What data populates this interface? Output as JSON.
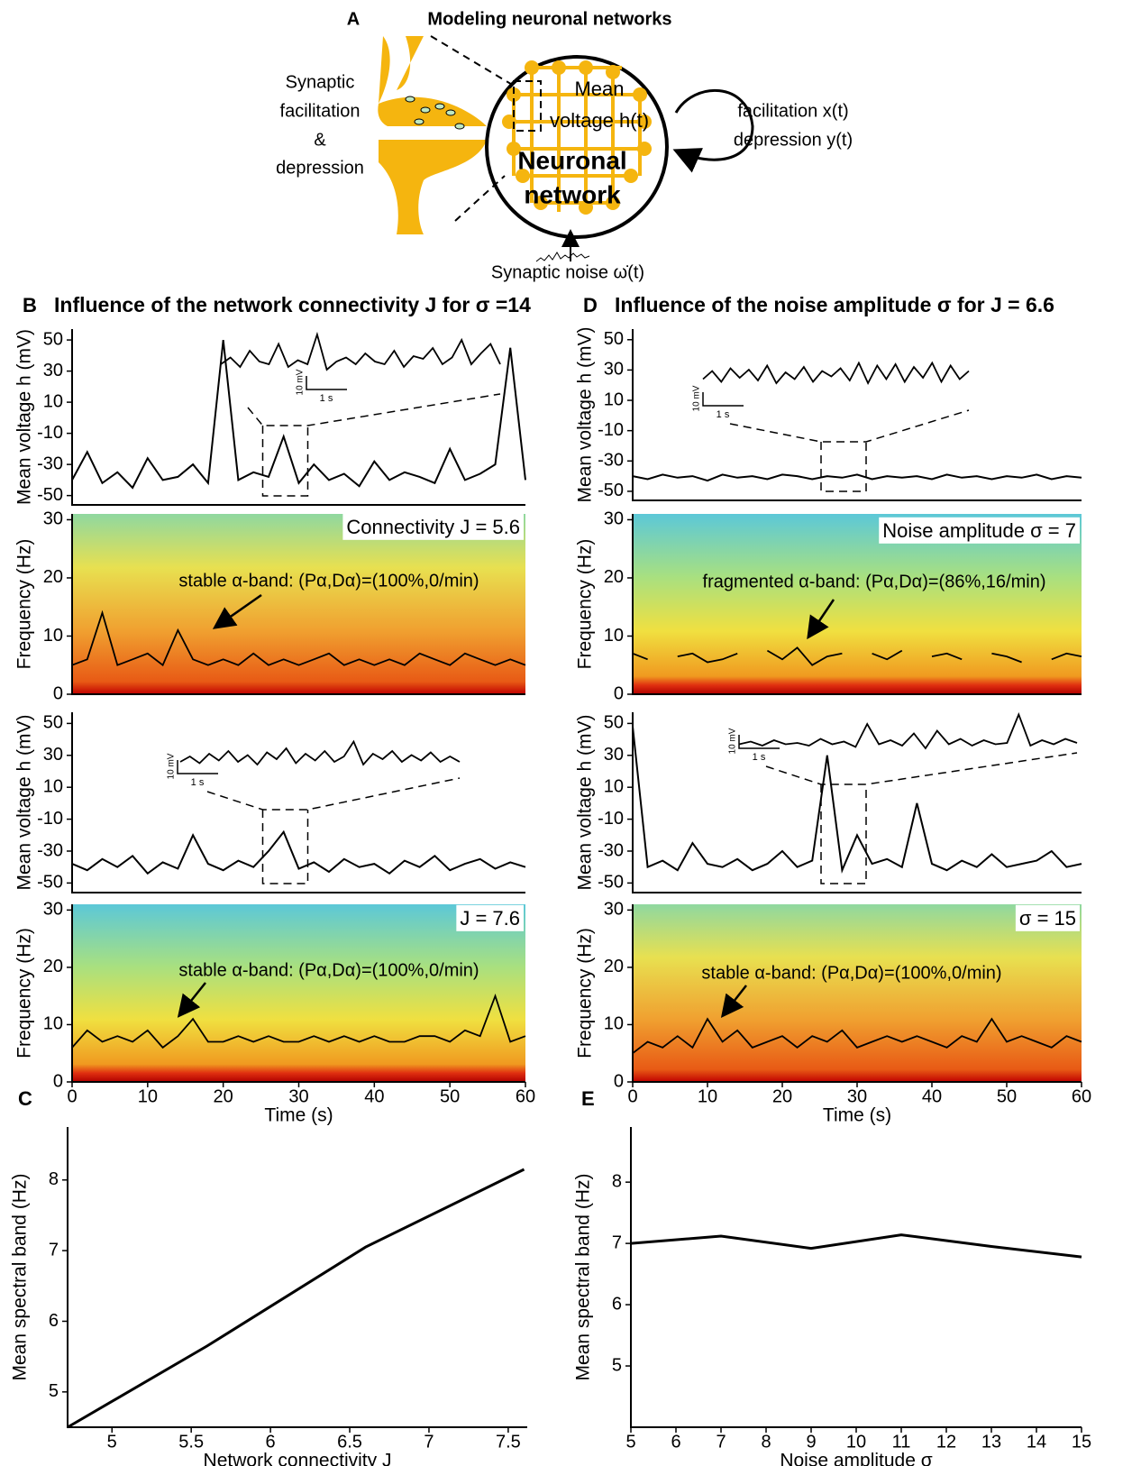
{
  "panel_a": {
    "label": "A",
    "title": "Modeling neuronal networks",
    "synapse_lines": [
      "Synaptic",
      "facilitation",
      "&",
      "depression"
    ],
    "mean_lines": [
      "Mean",
      "voltage h(t)"
    ],
    "network_lines": [
      "Neuronal",
      "network"
    ],
    "feedback_lines": [
      "facilitation x(t)",
      "depression y(t)"
    ],
    "noise": "Synaptic noise ω̇(t)"
  },
  "chart_data": [
    {
      "type": "voltage",
      "panel": "B",
      "title": "Influence of the network connectivity J for σ =14",
      "ylabel": "Mean voltage h (mV)",
      "color": "#000000",
      "xlim": [
        0,
        60
      ],
      "ylim": [
        -56,
        57
      ],
      "yticks": [
        50,
        30,
        10,
        -10,
        -30,
        -50
      ],
      "x": [
        0,
        2,
        4,
        6,
        8,
        10,
        12,
        14,
        16,
        18,
        20,
        22,
        24,
        26,
        28,
        30,
        32,
        34,
        36,
        38,
        40,
        42,
        44,
        46,
        48,
        50,
        52,
        54,
        56,
        58,
        60
      ],
      "values": [
        -40,
        -22,
        -42,
        -35,
        -45,
        -26,
        -40,
        -38,
        -30,
        -42,
        50,
        -40,
        -35,
        -38,
        -12,
        -42,
        -30,
        -40,
        -36,
        -44,
        -28,
        -40,
        -35,
        -38,
        -42,
        -20,
        -40,
        -36,
        -30,
        45,
        -40
      ],
      "inset": {
        "values": [
          30,
          35,
          28,
          40,
          32,
          30,
          45,
          28,
          33,
          30,
          52,
          26,
          32,
          35,
          30,
          38,
          32,
          30,
          40,
          28,
          36,
          34,
          42,
          30,
          35,
          48,
          30,
          38,
          45,
          30
        ],
        "scale_y": "10 mV",
        "scale_x": "1 s"
      }
    },
    {
      "type": "spectrogram",
      "ylabel": "Frequency (Hz)",
      "color": "#000000",
      "label": "Connectivity  J = 5.6",
      "annotation": "stable α-band: (Pα,Dα)=(100%,0/min)",
      "xlim": [
        0,
        60
      ],
      "ylim": [
        0,
        31
      ],
      "yticks": [
        0,
        10,
        20,
        30
      ],
      "x": [
        0,
        2,
        4,
        6,
        8,
        10,
        12,
        14,
        16,
        18,
        20,
        22,
        24,
        26,
        28,
        30,
        32,
        34,
        36,
        38,
        40,
        42,
        44,
        46,
        48,
        50,
        52,
        54,
        56,
        58,
        60
      ],
      "values": [
        5,
        6,
        14,
        5,
        6,
        7,
        5,
        11,
        6,
        5,
        6,
        5,
        7,
        5,
        6,
        5,
        6,
        7,
        5,
        6,
        5,
        6,
        5,
        7,
        6,
        5,
        7,
        6,
        5,
        6,
        5
      ]
    },
    {
      "type": "voltage",
      "ylabel": "Mean voltage h (mV)",
      "color": "#000000",
      "xlim": [
        0,
        60
      ],
      "ylim": [
        -56,
        57
      ],
      "yticks": [
        50,
        30,
        10,
        -10,
        -30,
        -50
      ],
      "x": [
        0,
        2,
        4,
        6,
        8,
        10,
        12,
        14,
        16,
        18,
        20,
        22,
        24,
        26,
        28,
        30,
        32,
        34,
        36,
        38,
        40,
        42,
        44,
        46,
        48,
        50,
        52,
        54,
        56,
        58,
        60
      ],
      "values": [
        -38,
        -42,
        -35,
        -40,
        -33,
        -44,
        -37,
        -41,
        -20,
        -38,
        -42,
        -36,
        -40,
        -30,
        -18,
        -41,
        -37,
        -43,
        -35,
        -40,
        -38,
        -44,
        -36,
        -40,
        -33,
        -42,
        -38,
        -35,
        -41,
        -37,
        -40
      ],
      "inset": {
        "values": [
          30,
          34,
          29,
          36,
          31,
          38,
          30,
          35,
          28,
          37,
          32,
          40,
          29,
          36,
          31,
          38,
          30,
          34,
          45,
          28,
          36,
          32,
          38,
          30,
          35,
          31,
          37,
          30,
          34,
          30
        ],
        "scale_y": "10 mV",
        "scale_x": "1 s"
      }
    },
    {
      "type": "spectrogram",
      "ylabel": "Frequency (Hz)",
      "xlabel": "Time (s)",
      "color": "#000000",
      "label": "J = 7.6",
      "annotation": "stable α-band: (Pα,Dα)=(100%,0/min)",
      "xlim": [
        0,
        60
      ],
      "ylim": [
        0,
        31
      ],
      "yticks": [
        0,
        10,
        20,
        30
      ],
      "xticks": [
        0,
        10,
        20,
        30,
        40,
        50,
        60
      ],
      "x": [
        0,
        2,
        4,
        6,
        8,
        10,
        12,
        14,
        16,
        18,
        20,
        22,
        24,
        26,
        28,
        30,
        32,
        34,
        36,
        38,
        40,
        42,
        44,
        46,
        48,
        50,
        52,
        54,
        56,
        58,
        60
      ],
      "values": [
        6,
        9,
        7,
        8,
        7,
        9,
        6,
        8,
        11,
        7,
        7,
        8,
        7,
        8,
        7,
        7,
        8,
        7,
        8,
        7,
        8,
        7,
        7,
        8,
        8,
        7,
        9,
        8,
        15,
        7,
        8
      ]
    },
    {
      "type": "voltage",
      "panel": "D",
      "title": "Influence of the noise amplitude σ for J = 6.6",
      "ylabel": "Mean voltage h (mV)",
      "color": "#000000",
      "xlim": [
        0,
        60
      ],
      "ylim": [
        -56,
        57
      ],
      "yticks": [
        50,
        30,
        10,
        -10,
        -30,
        -50
      ],
      "x": [
        0,
        2,
        4,
        6,
        8,
        10,
        12,
        14,
        16,
        18,
        20,
        22,
        24,
        26,
        28,
        30,
        32,
        34,
        36,
        38,
        40,
        42,
        44,
        46,
        48,
        50,
        52,
        54,
        56,
        58,
        60
      ],
      "values": [
        -40,
        -42,
        -39,
        -41,
        -40,
        -43,
        -39,
        -41,
        -40,
        -42,
        -39,
        -40,
        -42,
        -40,
        -41,
        -39,
        -42,
        -40,
        -41,
        -40,
        -42,
        -39,
        -41,
        -40,
        -42,
        -40,
        -41,
        -39,
        -42,
        -40,
        -41
      ],
      "inset": {
        "values": [
          30,
          36,
          28,
          38,
          31,
          37,
          29,
          40,
          27,
          35,
          30,
          39,
          28,
          36,
          32,
          38,
          29,
          42,
          27,
          40,
          30,
          41,
          28,
          39,
          31,
          42,
          28,
          40,
          30,
          36
        ],
        "scale_y": "10 mV",
        "scale_x": "1 s"
      }
    },
    {
      "type": "spectrogram",
      "ylabel": "Frequency (Hz)",
      "color": "#000000",
      "label": "Noise amplitude  σ = 7",
      "annotation": "fragmented α-band: (Pα,Dα)=(86%,16/min)",
      "xlim": [
        0,
        60
      ],
      "ylim": [
        0,
        31
      ],
      "yticks": [
        0,
        10,
        20,
        30
      ],
      "x": [
        0,
        2,
        4,
        6,
        8,
        10,
        12,
        14,
        16,
        18,
        20,
        22,
        24,
        26,
        28,
        30,
        32,
        34,
        36,
        38,
        40,
        42,
        44,
        46,
        48,
        50,
        52,
        54,
        56,
        58,
        60
      ],
      "values": [
        7,
        6,
        null,
        6.5,
        7,
        5.5,
        6,
        7,
        null,
        7.5,
        6,
        8,
        5,
        6.5,
        7,
        null,
        7,
        6,
        7.5,
        null,
        6.5,
        7,
        6,
        null,
        7,
        6.5,
        5.5,
        null,
        6,
        7,
        6.5
      ]
    },
    {
      "type": "voltage",
      "ylabel": "Mean voltage h (mV)",
      "color": "#000000",
      "xlim": [
        0,
        60
      ],
      "ylim": [
        -56,
        57
      ],
      "yticks": [
        50,
        30,
        10,
        -10,
        -30,
        -50
      ],
      "x": [
        0,
        2,
        4,
        6,
        8,
        10,
        12,
        14,
        16,
        18,
        20,
        22,
        24,
        26,
        28,
        30,
        32,
        34,
        36,
        38,
        40,
        42,
        44,
        46,
        48,
        50,
        52,
        54,
        56,
        58,
        60
      ],
      "values": [
        48,
        -40,
        -36,
        -42,
        -25,
        -38,
        -40,
        -35,
        -42,
        -38,
        -30,
        -40,
        -36,
        30,
        -42,
        -20,
        -38,
        -35,
        -40,
        0,
        -38,
        -42,
        -36,
        -40,
        -32,
        -40,
        -38,
        -36,
        -30,
        -40,
        -38
      ],
      "inset": {
        "values": [
          30,
          32,
          29,
          33,
          30,
          31,
          29,
          34,
          30,
          32,
          28,
          45,
          30,
          33,
          29,
          38,
          27,
          40,
          30,
          34,
          29,
          33,
          30,
          31,
          52,
          29,
          33,
          30,
          34,
          31
        ],
        "scale_y": "10 mV",
        "scale_x": "1 s"
      }
    },
    {
      "type": "spectrogram",
      "ylabel": "Frequency (Hz)",
      "xlabel": "Time (s)",
      "color": "#000000",
      "label": "σ = 15",
      "annotation": "stable α-band: (Pα,Dα)=(100%,0/min)",
      "xlim": [
        0,
        60
      ],
      "ylim": [
        0,
        31
      ],
      "yticks": [
        0,
        10,
        20,
        30
      ],
      "xticks": [
        0,
        10,
        20,
        30,
        40,
        50,
        60
      ],
      "x": [
        0,
        2,
        4,
        6,
        8,
        10,
        12,
        14,
        16,
        18,
        20,
        22,
        24,
        26,
        28,
        30,
        32,
        34,
        36,
        38,
        40,
        42,
        44,
        46,
        48,
        50,
        52,
        54,
        56,
        58,
        60
      ],
      "values": [
        5,
        7,
        6,
        8,
        6,
        11,
        7,
        9,
        6,
        7,
        8,
        6,
        8,
        7,
        9,
        6,
        7,
        8,
        7,
        8,
        7,
        6,
        8,
        7,
        11,
        7,
        8,
        7,
        6,
        8,
        7
      ]
    },
    {
      "type": "line",
      "panel": "C",
      "xlabel": "Network connectivity J",
      "ylabel": "Mean spectral band (Hz)",
      "color": "#000000",
      "xlim": [
        4.72,
        7.62
      ],
      "ylim": [
        4.5,
        8.75
      ],
      "xticks": [
        5,
        5.5,
        6,
        6.5,
        7,
        7.5
      ],
      "yticks": [
        5,
        6,
        7,
        8
      ],
      "x": [
        4.72,
        5.6,
        6.6,
        7.6
      ],
      "values": [
        4.5,
        5.65,
        7.05,
        8.15
      ]
    },
    {
      "type": "line",
      "panel": "E",
      "xlabel": "Noise amplitude σ",
      "ylabel": "Mean spectral band (Hz)",
      "color": "#000000",
      "xlim": [
        5,
        15
      ],
      "ylim": [
        4,
        8.9
      ],
      "xticks": [
        5,
        6,
        7,
        8,
        9,
        10,
        11,
        12,
        13,
        14,
        15
      ],
      "yticks": [
        5,
        6,
        7,
        8
      ],
      "x": [
        5,
        7,
        9,
        11,
        13,
        15
      ],
      "values": [
        7.0,
        7.12,
        6.92,
        7.14,
        6.95,
        6.78
      ]
    }
  ]
}
